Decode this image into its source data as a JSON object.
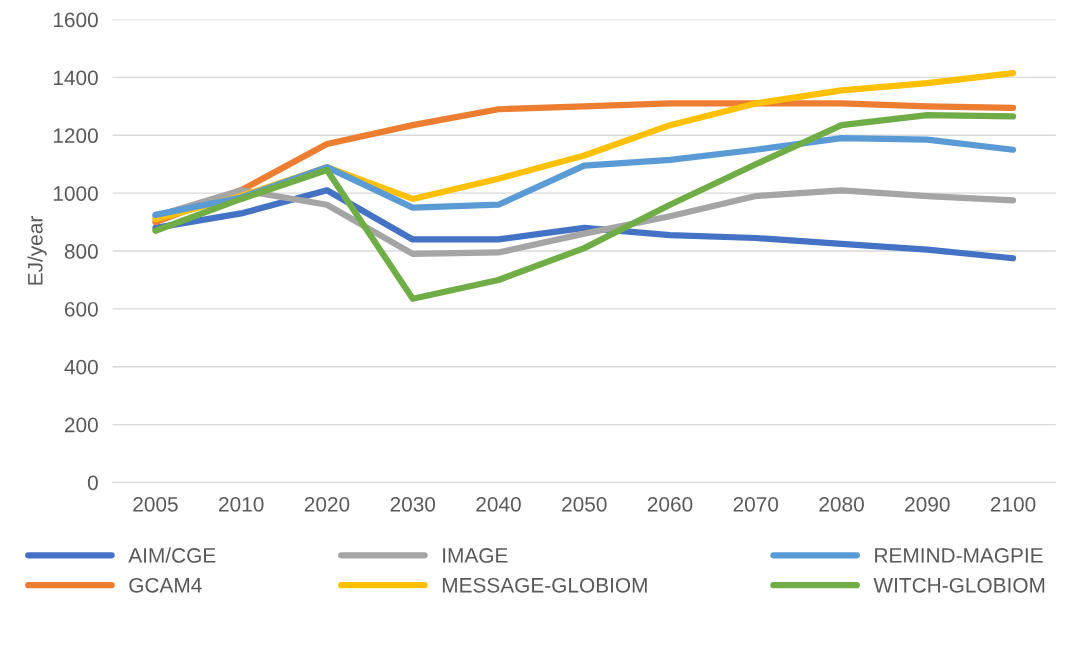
{
  "chart_data": {
    "type": "line",
    "ylabel": "EJ/year",
    "categories": [
      "2005",
      "2010",
      "2020",
      "2030",
      "2040",
      "2050",
      "2060",
      "2070",
      "2080",
      "2090",
      "2100"
    ],
    "series": [
      {
        "name": "AIM/CGE",
        "color": "#4472c4",
        "values": [
          880,
          930,
          1010,
          840,
          840,
          880,
          855,
          845,
          825,
          805,
          775
        ]
      },
      {
        "name": "GCAM4",
        "color": "#ed7d31",
        "values": [
          900,
          1010,
          1170,
          1235,
          1290,
          1300,
          1310,
          1310,
          1310,
          1300,
          1295
        ]
      },
      {
        "name": "IMAGE",
        "color": "#a5a5a5",
        "values": [
          920,
          1010,
          960,
          790,
          795,
          860,
          920,
          990,
          1010,
          990,
          975
        ]
      },
      {
        "name": "MESSAGE-GLOBIOM",
        "color": "#ffc000",
        "values": [
          910,
          990,
          1090,
          980,
          1050,
          1130,
          1235,
          1310,
          1355,
          1380,
          1415
        ]
      },
      {
        "name": "REMIND-MAGPIE",
        "color": "#5b9bd5",
        "values": [
          925,
          985,
          1090,
          950,
          960,
          1095,
          1115,
          1150,
          1190,
          1185,
          1150
        ]
      },
      {
        "name": "WITCH-GLOBIOM",
        "color": "#70ad47",
        "values": [
          870,
          980,
          1080,
          635,
          700,
          810,
          960,
          1100,
          1235,
          1270,
          1265
        ]
      }
    ],
    "ylim": [
      0,
      1600
    ],
    "yticks": [
      0,
      200,
      400,
      600,
      800,
      1000,
      1200,
      1400,
      1600
    ],
    "grid": "y",
    "legend": "bottom",
    "marker": "none",
    "line_style": "solid"
  }
}
